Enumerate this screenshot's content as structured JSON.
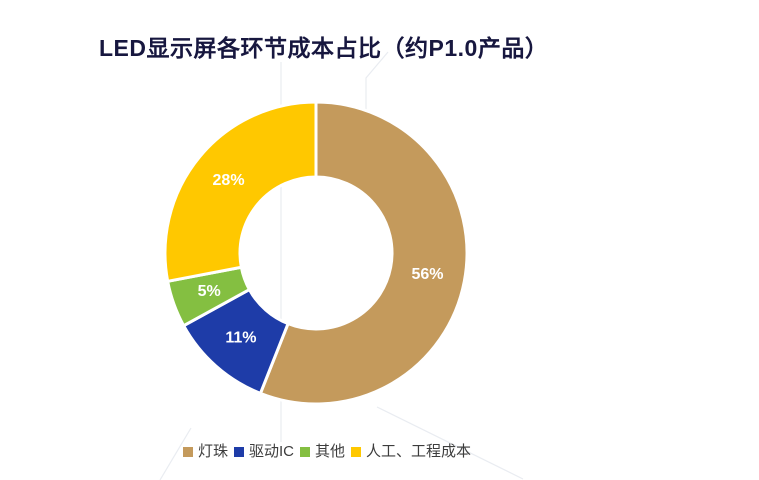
{
  "chart_data": {
    "type": "pie",
    "variant": "donut",
    "title": "LED显示屏各环节成本占比（约P1.0产品）",
    "direction": "clockwise",
    "start_angle_deg": 0,
    "inner_radius_ratio": 0.5,
    "legend_position": "bottom",
    "data_label_color": "#FFFFFF",
    "slices": [
      {
        "label": "灯珠",
        "value_pct": 56,
        "data_label": "56%",
        "color": "#C49A5C"
      },
      {
        "label": "驱动IC",
        "value_pct": 11,
        "data_label": "11%",
        "color": "#1E3CA8"
      },
      {
        "label": "其他",
        "value_pct": 5,
        "data_label": "5%",
        "color": "#84BF41"
      },
      {
        "label": "人工、工程成本",
        "value_pct": 28,
        "data_label": "28%",
        "color": "#FFC800"
      }
    ]
  },
  "styles": {
    "background": "#FFFFFF",
    "title_color": "#17173F",
    "legend_text_color": "#3D3D3D",
    "slice_divider_color": "#FFFFFF",
    "watermark_color": "#E9ECF1"
  }
}
